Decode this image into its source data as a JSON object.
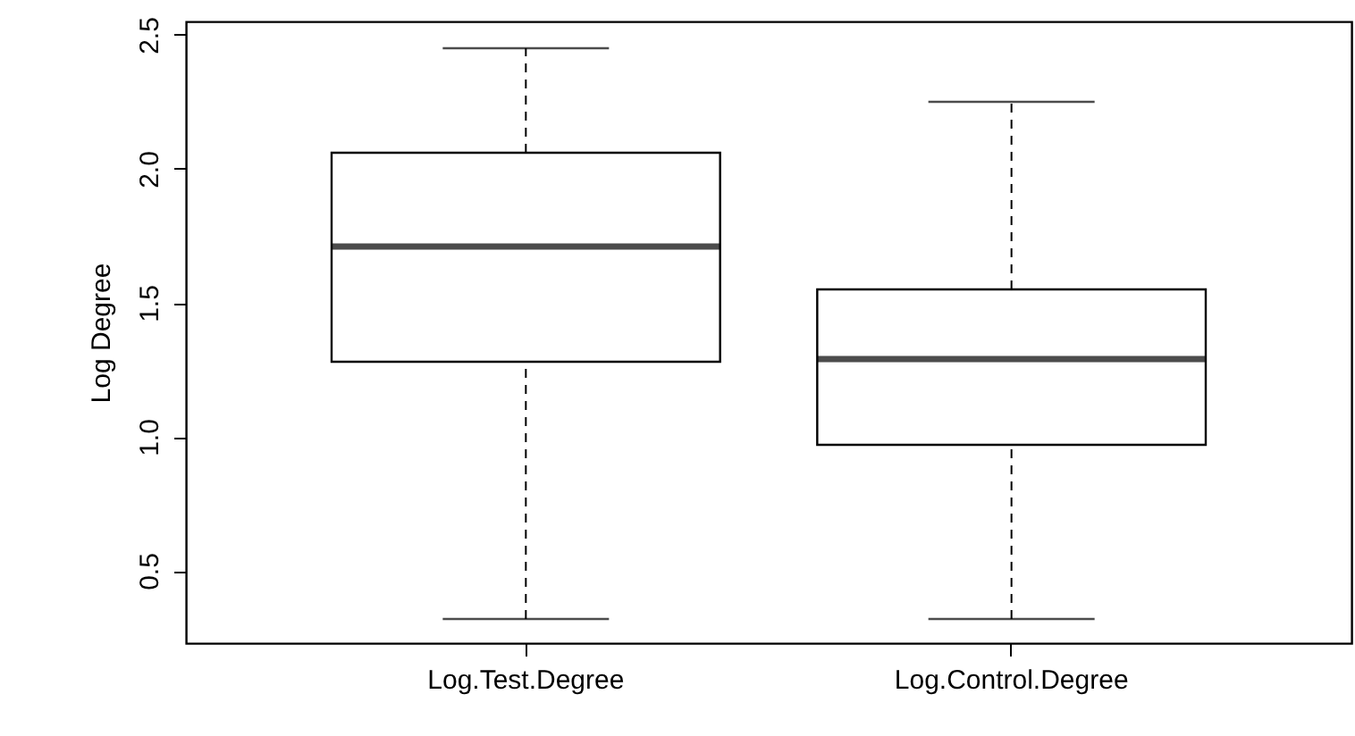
{
  "chart_data": {
    "type": "box",
    "ylabel": "Log Degree",
    "categories": [
      "Log.Test.Degree",
      "Log.Control.Degree"
    ],
    "boxes": [
      {
        "low": 0.32,
        "q1": 1.28,
        "median": 1.71,
        "q3": 2.06,
        "high": 2.45
      },
      {
        "low": 0.32,
        "q1": 0.97,
        "median": 1.29,
        "q3": 1.55,
        "high": 2.25
      }
    ],
    "ylim": [
      0.23,
      2.55
    ],
    "yticks": [
      0.5,
      {
        "value": 1,
        "label": "1.0"
      },
      1.5,
      {
        "value": 2,
        "label": "2.0"
      },
      2.5
    ],
    "grid": false
  }
}
